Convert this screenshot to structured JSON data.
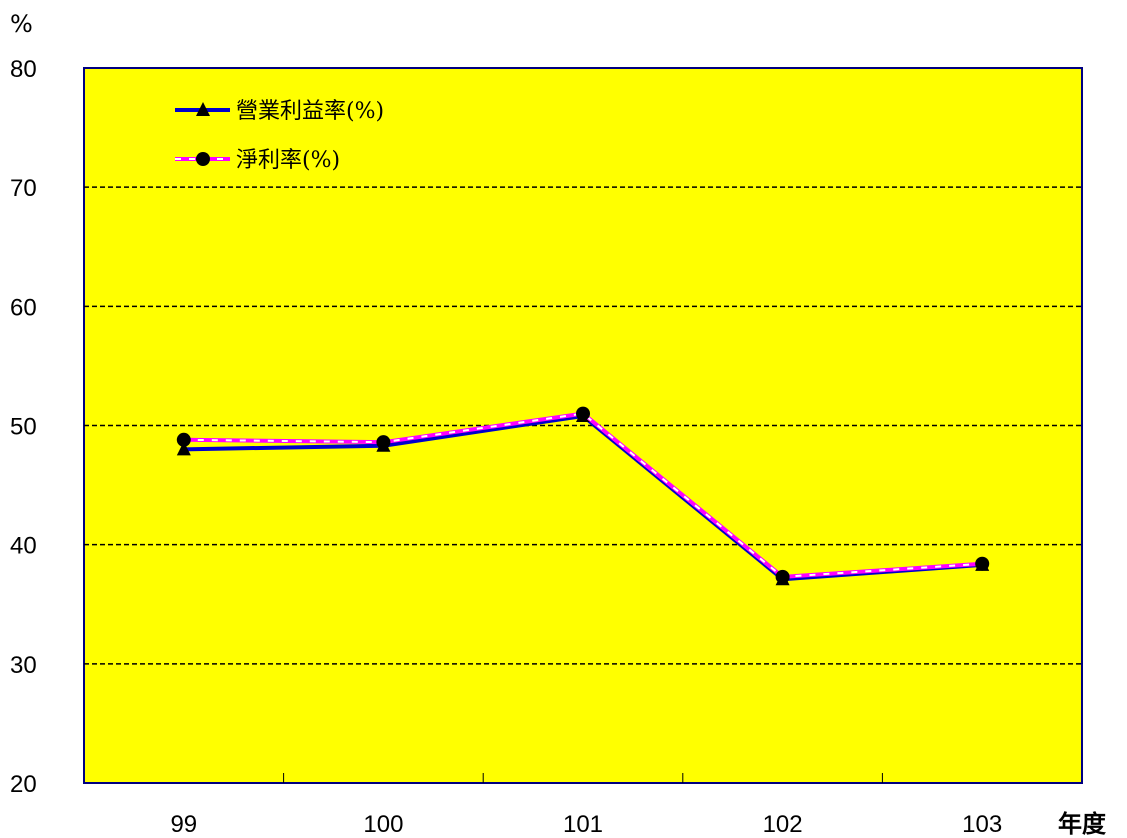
{
  "chart_data": {
    "type": "line",
    "title": "",
    "ylabel": "%",
    "xlabel": "年度",
    "categories": [
      "99",
      "100",
      "101",
      "102",
      "103"
    ],
    "ylim": [
      20,
      80
    ],
    "yticks": [
      "20",
      "30",
      "40",
      "50",
      "60",
      "70",
      "80"
    ],
    "grid": true,
    "legend_position": "top-left",
    "background_color": "#FFFF00",
    "series": [
      {
        "name": "營業利益率(%)",
        "values": [
          48.0,
          48.3,
          50.8,
          37.1,
          38.3
        ],
        "color": "#0000CC",
        "marker": "triangle"
      },
      {
        "name": "淨利率(%)",
        "values": [
          48.8,
          48.6,
          51.0,
          37.3,
          38.4
        ],
        "color": "#FF00FF",
        "marker": "circle"
      }
    ]
  }
}
